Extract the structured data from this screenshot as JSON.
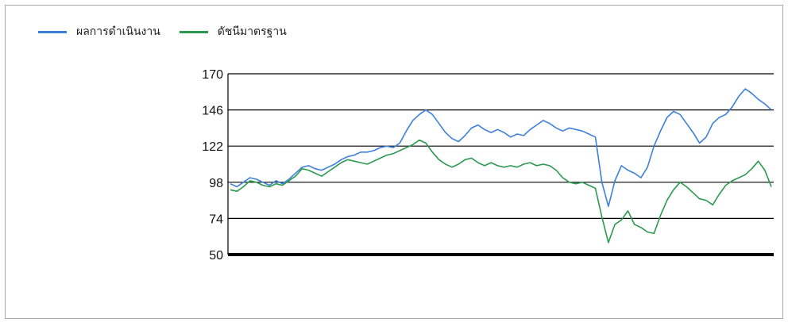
{
  "chart_data": {
    "type": "line",
    "title": "",
    "xlabel": "",
    "ylabel": "",
    "ylim": [
      50,
      170
    ],
    "yticks": [
      "50",
      "74",
      "98",
      "122",
      "146",
      "170"
    ],
    "grid": true,
    "legend_position": "top-left",
    "series": [
      {
        "name": "ผลการดำเนินงาน",
        "color": "#3c7fdd",
        "values": [
          97,
          95,
          98,
          101,
          100,
          98,
          96,
          99,
          97,
          100,
          104,
          108,
          109,
          107,
          106,
          108,
          110,
          113,
          115,
          116,
          118,
          118,
          119,
          121,
          122,
          121,
          124,
          132,
          139,
          143,
          146,
          143,
          137,
          131,
          127,
          125,
          129,
          134,
          136,
          133,
          131,
          133,
          131,
          128,
          130,
          129,
          133,
          136,
          139,
          137,
          134,
          132,
          134,
          133,
          132,
          130,
          128,
          98,
          82,
          99,
          109,
          106,
          104,
          101,
          108,
          122,
          132,
          141,
          145,
          143,
          137,
          131,
          124,
          128,
          137,
          141,
          143,
          148,
          155,
          160,
          157,
          153,
          150,
          146
        ]
      },
      {
        "name": "ดัชนีมาตรฐาน",
        "color": "#2b9a4e",
        "values": [
          93,
          92,
          95,
          99,
          98,
          96,
          95,
          97,
          96,
          99,
          102,
          107,
          106,
          104,
          102,
          105,
          108,
          111,
          113,
          112,
          111,
          110,
          112,
          114,
          116,
          117,
          119,
          121,
          123,
          126,
          124,
          118,
          113,
          110,
          108,
          110,
          113,
          114,
          111,
          109,
          111,
          109,
          108,
          109,
          108,
          110,
          111,
          109,
          110,
          109,
          106,
          101,
          98,
          97,
          98,
          96,
          94,
          75,
          58,
          70,
          73,
          79,
          70,
          68,
          65,
          64,
          76,
          86,
          93,
          98,
          95,
          91,
          87,
          86,
          83,
          90,
          96,
          99,
          101,
          103,
          107,
          112,
          106,
          95
        ]
      }
    ]
  }
}
